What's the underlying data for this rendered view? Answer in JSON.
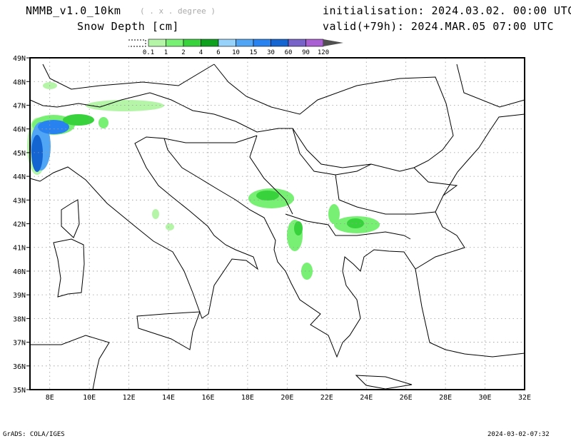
{
  "header": {
    "model": "NMMB_v1.0_10km",
    "resolution": "( . x . degree )",
    "variable": "Snow Depth [cm]",
    "init": "initialisation: 2024.03.02.  00:00 UTC",
    "valid": "valid(+79h): 2024.MAR.05 07:00 UTC"
  },
  "colorbar": {
    "labels": [
      "0.1",
      "1",
      "2",
      "4",
      "6",
      "10",
      "15",
      "30",
      "60",
      "90",
      "120"
    ],
    "colors": [
      "#b4f5a8",
      "#78f073",
      "#37d23c",
      "#0fa01e",
      "#96d2fa",
      "#50a5f5",
      "#2882f0",
      "#1464d2",
      "#7864c8",
      "#aa5fd2"
    ],
    "over_color": "#505050"
  },
  "axes": {
    "lat_labels": [
      "35N",
      "36N",
      "37N",
      "38N",
      "39N",
      "40N",
      "41N",
      "42N",
      "43N",
      "44N",
      "45N",
      "46N",
      "47N",
      "48N",
      "49N"
    ],
    "lon_labels": [
      "8E",
      "10E",
      "12E",
      "14E",
      "16E",
      "18E",
      "20E",
      "22E",
      "24E",
      "26E",
      "28E",
      "30E",
      "32E"
    ]
  },
  "footer": {
    "left": "GrADS: COLA/IGES",
    "right": "2024-03-02-07:32"
  }
}
